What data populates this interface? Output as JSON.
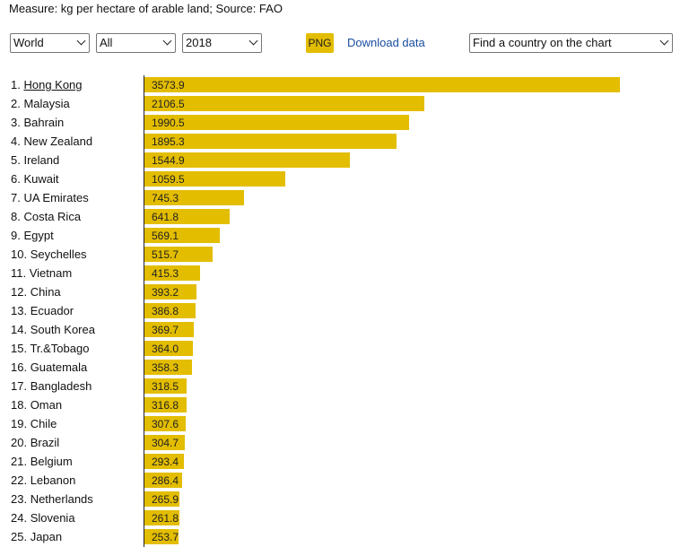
{
  "header": {
    "measure_text": "Measure: kg per hectare of arable land; Source: FAO"
  },
  "controls": {
    "region_select": "World",
    "group_select": "All",
    "year_select": "2018",
    "png_label": "PNG",
    "download_label": "Download data",
    "find_country_select": "Find a country on the chart"
  },
  "colors": {
    "bar": "#e3bd00",
    "link": "#1a4ea1"
  },
  "chart_data": {
    "type": "bar",
    "orientation": "horizontal",
    "xlim": [
      0,
      3573.9
    ],
    "highlighted": "Hong Kong",
    "categories": [
      "Hong Kong",
      "Malaysia",
      "Bahrain",
      "New Zealand",
      "Ireland",
      "Kuwait",
      "UA Emirates",
      "Costa Rica",
      "Egypt",
      "Seychelles",
      "Vietnam",
      "China",
      "Ecuador",
      "South Korea",
      "Tr.&Tobago",
      "Guatemala",
      "Bangladesh",
      "Oman",
      "Chile",
      "Brazil",
      "Belgium",
      "Lebanon",
      "Netherlands",
      "Slovenia",
      "Japan"
    ],
    "values": [
      3573.9,
      2106.5,
      1990.5,
      1895.3,
      1544.9,
      1059.5,
      745.3,
      641.8,
      569.1,
      515.7,
      415.3,
      393.2,
      386.8,
      369.7,
      364.0,
      358.3,
      318.5,
      316.8,
      307.6,
      304.7,
      293.4,
      286.4,
      265.9,
      261.8,
      253.7
    ],
    "value_labels": [
      "3573.9",
      "2106.5",
      "1990.5",
      "1895.3",
      "1544.9",
      "1059.5",
      "745.3",
      "641.8",
      "569.1",
      "515.7",
      "415.3",
      "393.2",
      "386.8",
      "369.7",
      "364.0",
      "358.3",
      "318.5",
      "316.8",
      "307.6",
      "304.7",
      "293.4",
      "286.4",
      "265.9",
      "261.8",
      "253.7"
    ]
  }
}
